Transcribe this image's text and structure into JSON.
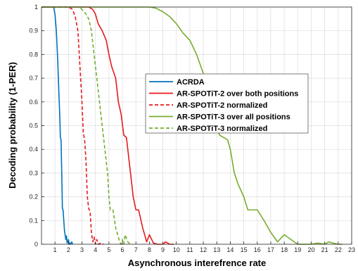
{
  "chart_data": {
    "type": "line",
    "title": "",
    "xlabel": "Asynchronous interefrence rate",
    "ylabel": "Decoding probability (1-PER)",
    "xlim": [
      0,
      23
    ],
    "ylim": [
      0,
      1
    ],
    "xticks": [
      1,
      2,
      3,
      4,
      5,
      6,
      7,
      8,
      9,
      10,
      11,
      12,
      13,
      14,
      15,
      16,
      17,
      18,
      19,
      20,
      21,
      22,
      23
    ],
    "yticks": [
      0,
      0.1,
      0.2,
      0.3,
      0.4,
      0.5,
      0.6,
      0.7,
      0.8,
      0.9,
      1
    ],
    "ytick_labels": [
      "0",
      "0.1",
      "0.2",
      "0.3",
      "0.4",
      "0.5",
      "0.6",
      "0.7",
      "0.8",
      "0.9",
      "1"
    ],
    "grid": true,
    "legend_position": "center-right",
    "series": [
      {
        "name": "ACRDA",
        "color": "#0072BD",
        "dash": "solid",
        "points": [
          [
            0,
            1
          ],
          [
            0.9,
            1
          ],
          [
            1.0,
            0.97
          ],
          [
            1.1,
            0.9
          ],
          [
            1.2,
            0.78
          ],
          [
            1.3,
            0.62
          ],
          [
            1.35,
            0.55
          ],
          [
            1.4,
            0.45
          ],
          [
            1.45,
            0.44
          ],
          [
            1.5,
            0.3
          ],
          [
            1.55,
            0.15
          ],
          [
            1.6,
            0.145
          ],
          [
            1.7,
            0.06
          ],
          [
            1.8,
            0.02
          ],
          [
            1.85,
            0.035
          ],
          [
            1.9,
            0.005
          ],
          [
            2.0,
            0.02
          ],
          [
            2.05,
            0.0
          ],
          [
            2.1,
            0.005
          ],
          [
            2.15,
            0.0
          ],
          [
            2.25,
            0.01
          ],
          [
            2.3,
            0.0
          ]
        ]
      },
      {
        "name": "AR-SPOTiT-2 over both positions",
        "color": "#E41A1C",
        "dash": "solid",
        "points": [
          [
            0,
            1
          ],
          [
            3.5,
            1
          ],
          [
            3.8,
            0.99
          ],
          [
            4.0,
            0.97
          ],
          [
            4.2,
            0.93
          ],
          [
            4.5,
            0.9
          ],
          [
            4.8,
            0.86
          ],
          [
            5.0,
            0.8
          ],
          [
            5.2,
            0.75
          ],
          [
            5.5,
            0.7
          ],
          [
            5.7,
            0.6
          ],
          [
            5.9,
            0.55
          ],
          [
            6.1,
            0.46
          ],
          [
            6.3,
            0.45
          ],
          [
            6.5,
            0.35
          ],
          [
            6.6,
            0.3
          ],
          [
            6.8,
            0.2
          ],
          [
            7.0,
            0.145
          ],
          [
            7.2,
            0.145
          ],
          [
            7.5,
            0.07
          ],
          [
            7.8,
            0.01
          ],
          [
            8.0,
            0.04
          ],
          [
            8.3,
            0.005
          ],
          [
            8.6,
            0.0
          ],
          [
            9.0,
            0.0
          ],
          [
            9.2,
            0.01
          ],
          [
            9.5,
            0.0
          ],
          [
            9.8,
            0.0
          ]
        ]
      },
      {
        "name": "AR-SPOTiT-2 normalized",
        "color": "#E41A1C",
        "dash": "dashed",
        "points": [
          [
            0,
            1
          ],
          [
            2.0,
            1
          ],
          [
            2.3,
            0.99
          ],
          [
            2.5,
            0.96
          ],
          [
            2.7,
            0.9
          ],
          [
            2.8,
            0.8
          ],
          [
            2.9,
            0.7
          ],
          [
            3.0,
            0.6
          ],
          [
            3.1,
            0.47
          ],
          [
            3.2,
            0.44
          ],
          [
            3.3,
            0.35
          ],
          [
            3.4,
            0.2
          ],
          [
            3.5,
            0.15
          ],
          [
            3.6,
            0.14
          ],
          [
            3.7,
            0.05
          ],
          [
            3.8,
            0.01
          ],
          [
            3.9,
            0.03
          ],
          [
            4.0,
            0.0
          ],
          [
            4.1,
            0.02
          ],
          [
            4.2,
            0.0
          ],
          [
            4.4,
            0.005
          ],
          [
            4.6,
            0.0
          ]
        ]
      },
      {
        "name": "AR-SPOTiT-3 over all positions",
        "color": "#77AC30",
        "dash": "solid",
        "points": [
          [
            0,
            1
          ],
          [
            7.5,
            1
          ],
          [
            8.0,
            1.0
          ],
          [
            8.5,
            0.995
          ],
          [
            9.0,
            0.98
          ],
          [
            9.5,
            0.96
          ],
          [
            10.0,
            0.93
          ],
          [
            10.5,
            0.89
          ],
          [
            11.0,
            0.86
          ],
          [
            11.5,
            0.8
          ],
          [
            12.0,
            0.72
          ],
          [
            12.5,
            0.67
          ],
          [
            12.8,
            0.6
          ],
          [
            13.0,
            0.5
          ],
          [
            13.2,
            0.46
          ],
          [
            13.5,
            0.45
          ],
          [
            13.8,
            0.44
          ],
          [
            14.0,
            0.4
          ],
          [
            14.3,
            0.3
          ],
          [
            14.6,
            0.25
          ],
          [
            15.0,
            0.2
          ],
          [
            15.3,
            0.145
          ],
          [
            15.6,
            0.145
          ],
          [
            16.0,
            0.145
          ],
          [
            16.5,
            0.1
          ],
          [
            17.0,
            0.05
          ],
          [
            17.5,
            0.01
          ],
          [
            18.0,
            0.04
          ],
          [
            18.5,
            0.02
          ],
          [
            19.0,
            0.0
          ],
          [
            19.5,
            0.0
          ],
          [
            20.0,
            0.0
          ],
          [
            20.5,
            0.005
          ],
          [
            21.0,
            0.0
          ],
          [
            21.3,
            0.01
          ],
          [
            21.6,
            0.005
          ],
          [
            22.0,
            0.0
          ],
          [
            22.3,
            0.0
          ]
        ]
      },
      {
        "name": "AR-SPOTiT-3 normalized",
        "color": "#77AC30",
        "dash": "dashed",
        "points": [
          [
            0,
            1
          ],
          [
            2.8,
            1
          ],
          [
            3.0,
            0.99
          ],
          [
            3.3,
            0.97
          ],
          [
            3.5,
            0.95
          ],
          [
            3.7,
            0.9
          ],
          [
            3.9,
            0.8
          ],
          [
            4.1,
            0.7
          ],
          [
            4.3,
            0.6
          ],
          [
            4.5,
            0.5
          ],
          [
            4.7,
            0.4
          ],
          [
            4.9,
            0.3
          ],
          [
            5.0,
            0.2
          ],
          [
            5.1,
            0.145
          ],
          [
            5.3,
            0.145
          ],
          [
            5.5,
            0.07
          ],
          [
            5.7,
            0.03
          ],
          [
            5.8,
            0.01
          ],
          [
            5.9,
            0.0
          ],
          [
            6.0,
            0.02
          ],
          [
            6.1,
            0.0
          ],
          [
            6.2,
            0.04
          ],
          [
            6.4,
            0.01
          ],
          [
            6.6,
            0.0
          ]
        ]
      }
    ]
  }
}
